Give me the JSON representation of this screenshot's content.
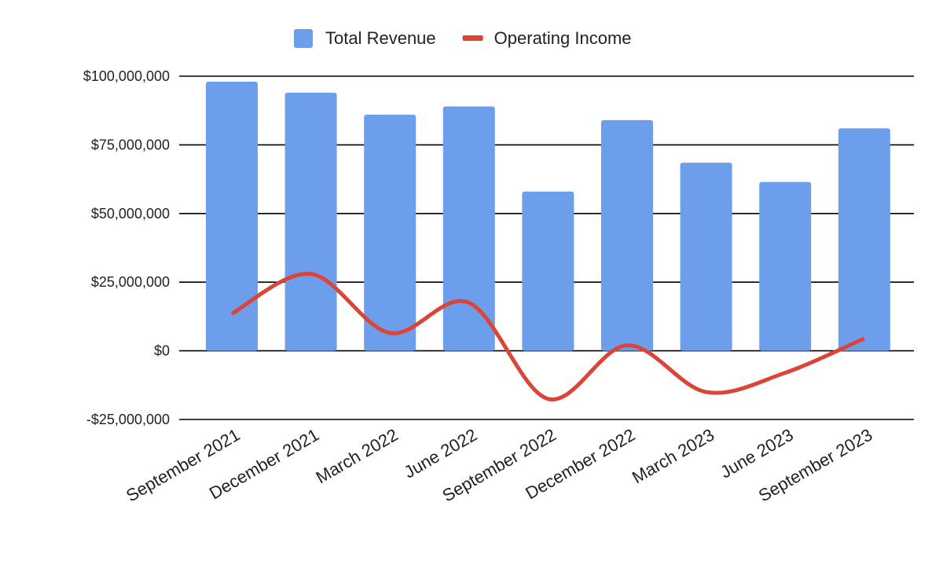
{
  "chart_data": {
    "type": "bar",
    "title": "",
    "xlabel": "",
    "ylabel": "",
    "categories": [
      "September 2021",
      "December 2021",
      "March 2022",
      "June 2022",
      "September 2022",
      "December 2022",
      "March 2023",
      "June 2023",
      "September 2023"
    ],
    "series": [
      {
        "name": "Total Revenue",
        "type": "bar",
        "color": "#6d9eeb",
        "values": [
          98000000,
          94000000,
          86000000,
          89000000,
          58000000,
          84000000,
          68500000,
          61500000,
          81000000
        ]
      },
      {
        "name": "Operating Income",
        "type": "line",
        "color": "#db4437",
        "smooth": true,
        "values": [
          13500000,
          28000000,
          6500000,
          17500000,
          -17500000,
          2000000,
          -15000000,
          -8000000,
          4500000
        ]
      }
    ],
    "ylim": [
      -25000000,
      100000000
    ],
    "yticks": [
      100000000,
      75000000,
      50000000,
      25000000,
      0,
      -25000000
    ],
    "ytick_labels": [
      "$100,000,000",
      "$75,000,000",
      "$50,000,000",
      "$25,000,000",
      "$0",
      "-$25,000,000"
    ],
    "grid": true,
    "legend": "top-center"
  }
}
